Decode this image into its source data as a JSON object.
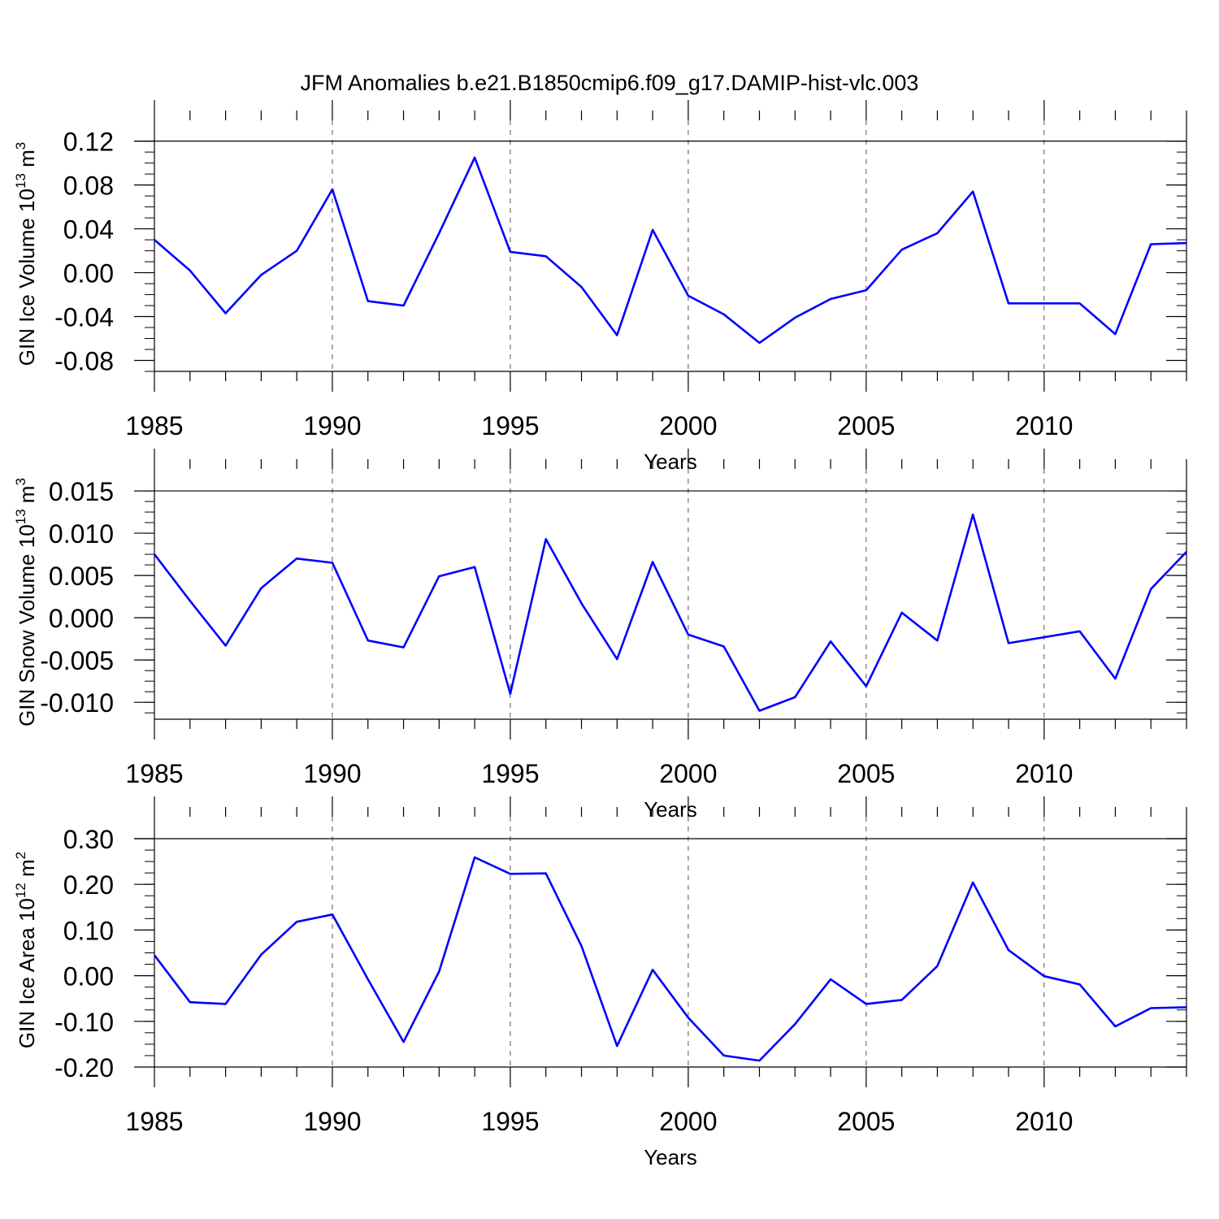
{
  "title": "JFM Anomalies b.e21.B1850cmip6.f09_g17.DAMIP-hist-vlc.003",
  "line_color": "#0000ff",
  "chart_data": [
    {
      "type": "line",
      "ylabel": "GIN Ice Volume 10",
      "ylabel_exp": "13",
      "ylabel_unit": "m",
      "ylabel_unit_exp": "3",
      "xlabel": "Years",
      "xlim": [
        1985,
        2014
      ],
      "ylim": [
        -0.09,
        0.12
      ],
      "xticks": [
        "1985",
        "1990",
        "1995",
        "2000",
        "2005",
        "2010"
      ],
      "yticks": [
        "0.12",
        "0.08",
        "0.04",
        "0.00",
        "-0.04",
        "-0.08"
      ],
      "x": [
        1985,
        1986,
        1987,
        1988,
        1989,
        1990,
        1991,
        1992,
        1993,
        1994,
        1995,
        1996,
        1997,
        1998,
        1999,
        2000,
        2001,
        2002,
        2003,
        2004,
        2005,
        2006,
        2007,
        2008,
        2009,
        2010,
        2011,
        2012,
        2013,
        2014
      ],
      "values": [
        0.03,
        0.002,
        -0.037,
        -0.002,
        0.02,
        0.076,
        -0.026,
        -0.03,
        0.036,
        0.105,
        0.019,
        0.015,
        -0.013,
        -0.057,
        0.039,
        -0.021,
        -0.038,
        -0.064,
        -0.041,
        -0.024,
        -0.016,
        0.021,
        0.036,
        0.074,
        -0.028,
        -0.028,
        -0.028,
        -0.056,
        0.026,
        0.027
      ]
    },
    {
      "type": "line",
      "ylabel": "GIN Snow Volume 10",
      "ylabel_exp": "13",
      "ylabel_unit": "m",
      "ylabel_unit_exp": "3",
      "xlabel": "Years",
      "xlim": [
        1985,
        2014
      ],
      "ylim": [
        -0.012,
        0.016
      ],
      "xticks": [
        "1985",
        "1990",
        "1995",
        "2000",
        "2005",
        "2010"
      ],
      "yticks": [
        "0.015",
        "0.010",
        "0.005",
        "0.000",
        "-0.005",
        "-0.010"
      ],
      "x": [
        1985,
        1986,
        1987,
        1988,
        1989,
        1990,
        1991,
        1992,
        1993,
        1994,
        1995,
        1996,
        1997,
        1998,
        1999,
        2000,
        2001,
        2002,
        2003,
        2004,
        2005,
        2006,
        2007,
        2008,
        2009,
        2010,
        2011,
        2012,
        2013,
        2014
      ],
      "values": [
        0.0075,
        0.002,
        -0.0033,
        0.0035,
        0.007,
        0.0065,
        -0.0027,
        -0.0035,
        0.0049,
        0.006,
        -0.009,
        0.0093,
        0.0017,
        -0.0049,
        0.0066,
        -0.002,
        -0.0034,
        -0.011,
        -0.0094,
        -0.0028,
        -0.0081,
        0.0006,
        -0.0027,
        0.0122,
        -0.003,
        -0.0023,
        -0.0016,
        -0.0072,
        0.0034,
        0.0078
      ]
    },
    {
      "type": "line",
      "ylabel": "GIN Ice Area 10",
      "ylabel_exp": "12",
      "ylabel_unit": "m",
      "ylabel_unit_exp": "2",
      "xlabel": "Years",
      "xlim": [
        1985,
        2014
      ],
      "ylim": [
        -0.2,
        0.3
      ],
      "xticks": [
        "1985",
        "1990",
        "1995",
        "2000",
        "2005",
        "2010"
      ],
      "yticks": [
        "0.30",
        "0.20",
        "0.10",
        "0.00",
        "-0.10",
        "-0.20"
      ],
      "x": [
        1985,
        1986,
        1987,
        1988,
        1989,
        1990,
        1991,
        1992,
        1993,
        1994,
        1995,
        1996,
        1997,
        1998,
        1999,
        2000,
        2001,
        2002,
        2003,
        2004,
        2005,
        2006,
        2007,
        2008,
        2009,
        2010,
        2011,
        2012,
        2013,
        2014
      ],
      "values": [
        0.045,
        -0.058,
        -0.062,
        0.046,
        0.118,
        0.134,
        -0.008,
        -0.145,
        0.009,
        0.259,
        0.223,
        0.224,
        0.065,
        -0.154,
        0.013,
        -0.092,
        -0.175,
        -0.186,
        -0.106,
        -0.008,
        -0.062,
        -0.053,
        0.021,
        0.204,
        0.056,
        -0.001,
        -0.019,
        -0.111,
        -0.071,
        -0.069
      ]
    }
  ]
}
